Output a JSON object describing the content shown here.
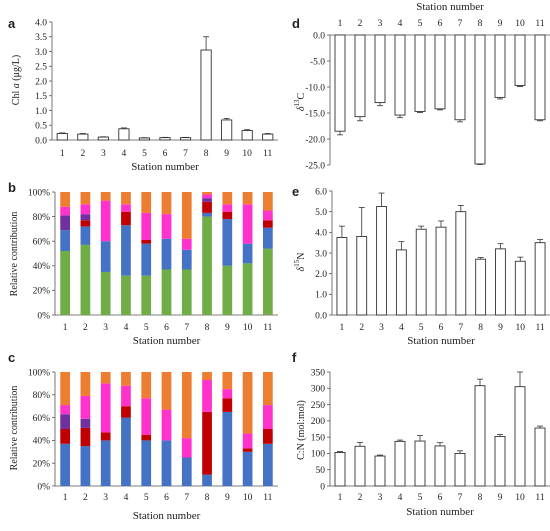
{
  "panel_letters": [
    "a",
    "b",
    "c",
    "d",
    "e",
    "f"
  ],
  "ylabel_a_parts": [
    "Chl ",
    "a",
    " (μg/L)"
  ],
  "ylabel_d_parts": [
    "δ",
    "13",
    "C"
  ],
  "ylabel_e_parts": [
    "δ",
    "15",
    "N"
  ],
  "stack_colors": {
    "green": "#70ad47",
    "blue": "#4472c4",
    "dark_red": "#c00000",
    "purple": "#7030a0",
    "magenta": "#ff33cc",
    "orange": "#ed7d31"
  },
  "bar_fill": "#ffffff",
  "bar_stroke": "#333333",
  "chart_data": [
    {
      "id": "a",
      "type": "bar",
      "categories": [
        "1",
        "2",
        "3",
        "4",
        "5",
        "6",
        "7",
        "8",
        "9",
        "10",
        "11"
      ],
      "values": [
        0.22,
        0.2,
        0.1,
        0.38,
        0.07,
        0.08,
        0.08,
        3.05,
        0.68,
        0.32,
        0.2
      ],
      "errors": [
        0.02,
        0.02,
        0.01,
        0.03,
        0.01,
        0.01,
        0.01,
        0.45,
        0.05,
        0.03,
        0.02
      ],
      "xlabel": "Station number",
      "ylabel": "Chl a (μg/L)",
      "ylim": [
        0,
        4
      ],
      "yticks": [
        "0.0",
        "0.5",
        "1.0",
        "1.5",
        "2.0",
        "2.5",
        "3.0",
        "3.5",
        "4.0"
      ],
      "grid": false
    },
    {
      "id": "b",
      "type": "bar",
      "stacked": true,
      "categories": [
        "1",
        "2",
        "3",
        "4",
        "5",
        "6",
        "7",
        "8",
        "9",
        "10",
        "11"
      ],
      "xlabel": "Station number",
      "ylabel": "Relative contribution",
      "ylim": [
        0,
        100
      ],
      "yticks": [
        "0%",
        "20%",
        "40%",
        "60%",
        "80%",
        "100%"
      ],
      "grid": false,
      "series": [
        {
          "color_key": "green",
          "values": [
            52,
            57,
            35,
            32,
            32,
            37,
            37,
            80,
            40,
            42,
            54
          ]
        },
        {
          "color_key": "blue",
          "values": [
            17,
            15,
            25,
            41,
            26,
            25,
            16,
            3,
            38,
            16,
            17
          ]
        },
        {
          "color_key": "dark_red",
          "values": [
            0,
            5,
            0,
            11,
            3,
            0,
            0,
            9,
            6,
            0,
            6
          ]
        },
        {
          "color_key": "purple",
          "values": [
            12,
            5,
            0,
            0,
            0,
            0,
            0,
            3,
            0,
            0,
            0
          ]
        },
        {
          "color_key": "magenta",
          "values": [
            7,
            8,
            33,
            6,
            22,
            20,
            9,
            3,
            6,
            32,
            8
          ]
        },
        {
          "color_key": "orange",
          "values": [
            12,
            10,
            7,
            10,
            17,
            18,
            38,
            2,
            10,
            10,
            15
          ]
        }
      ]
    },
    {
      "id": "c",
      "type": "bar",
      "stacked": true,
      "categories": [
        "1",
        "2",
        "3",
        "4",
        "5",
        "6",
        "7",
        "8",
        "9",
        "10",
        "11"
      ],
      "xlabel": "Station number",
      "ylabel": "Relative contribution",
      "ylim": [
        0,
        100
      ],
      "yticks": [
        "0%",
        "20%",
        "40%",
        "60%",
        "80%",
        "100%"
      ],
      "grid": false,
      "series": [
        {
          "color_key": "blue",
          "values": [
            37,
            35,
            40,
            60,
            40,
            40,
            25,
            10,
            65,
            30,
            37
          ]
        },
        {
          "color_key": "dark_red",
          "values": [
            13,
            16,
            7,
            10,
            5,
            0,
            0,
            55,
            12,
            3,
            13
          ]
        },
        {
          "color_key": "purple",
          "values": [
            13,
            8,
            0,
            0,
            0,
            0,
            0,
            0,
            0,
            0,
            0
          ]
        },
        {
          "color_key": "magenta",
          "values": [
            8,
            20,
            43,
            18,
            32,
            27,
            17,
            28,
            8,
            13,
            21
          ]
        },
        {
          "color_key": "orange",
          "values": [
            29,
            21,
            10,
            12,
            23,
            33,
            58,
            7,
            15,
            54,
            29
          ]
        }
      ]
    },
    {
      "id": "d",
      "type": "bar",
      "categories": [
        "1",
        "2",
        "3",
        "4",
        "5",
        "6",
        "7",
        "8",
        "9",
        "10",
        "11"
      ],
      "values": [
        -18.5,
        -15.7,
        -13.0,
        -15.4,
        -14.7,
        -14.2,
        -16.3,
        -24.8,
        -12.0,
        -9.7,
        -16.3
      ],
      "errors": [
        0.7,
        0.8,
        0.6,
        0.5,
        0.2,
        0.2,
        0.4,
        0.1,
        0.3,
        0.2,
        0.2
      ],
      "xlabel": "Station number",
      "ylabel": "δ13C",
      "ylim": [
        -25,
        0
      ],
      "yticks": [
        "0.0",
        "-5.0",
        "-10.0",
        "-15.0",
        "-20.0",
        "-25.0"
      ],
      "x_axis_position": "top",
      "grid": false
    },
    {
      "id": "e",
      "type": "bar",
      "categories": [
        "1",
        "2",
        "3",
        "4",
        "5",
        "6",
        "7",
        "8",
        "9",
        "10",
        "11"
      ],
      "values": [
        3.75,
        3.8,
        5.25,
        3.15,
        4.15,
        4.25,
        5.0,
        2.7,
        3.2,
        2.6,
        3.5
      ],
      "errors": [
        0.55,
        1.4,
        0.65,
        0.4,
        0.15,
        0.3,
        0.3,
        0.08,
        0.25,
        0.2,
        0.15
      ],
      "xlabel": "Station number",
      "ylabel": "δ15N",
      "ylim": [
        0,
        6
      ],
      "yticks": [
        "0.0",
        "1.0",
        "2.0",
        "3.0",
        "4.0",
        "5.0",
        "6.0"
      ],
      "grid": false
    },
    {
      "id": "f",
      "type": "bar",
      "categories": [
        "1",
        "2",
        "3",
        "4",
        "5",
        "6",
        "7",
        "8",
        "9",
        "10",
        "11"
      ],
      "values": [
        103,
        122,
        92,
        137,
        138,
        123,
        100,
        308,
        152,
        305,
        178
      ],
      "errors": [
        3,
        12,
        3,
        4,
        17,
        10,
        8,
        20,
        6,
        45,
        6
      ],
      "xlabel": "Station number",
      "ylabel": "C:N (mol:mol)",
      "ylim": [
        0,
        350
      ],
      "yticks": [
        "0",
        "50",
        "100",
        "150",
        "200",
        "250",
        "300",
        "350"
      ],
      "grid": false
    }
  ]
}
